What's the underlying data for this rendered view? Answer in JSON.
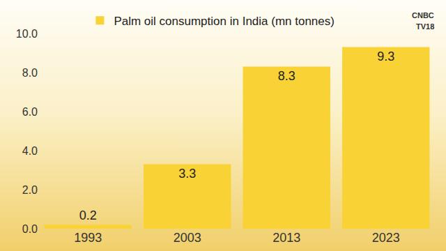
{
  "chart_data": {
    "type": "bar",
    "categories": [
      "1993",
      "2003",
      "2013",
      "2023"
    ],
    "series": [
      {
        "name": "Palm oil consumption in India (mn tonnes)",
        "color": "#f9d236",
        "values": [
          0.2,
          3.3,
          8.3,
          9.3
        ]
      }
    ],
    "ylim": [
      0,
      10
    ],
    "yticks": [
      {
        "value": 0,
        "label": "0.0"
      },
      {
        "value": 2,
        "label": "2.0"
      },
      {
        "value": 4,
        "label": "4.0"
      },
      {
        "value": 6,
        "label": "6.0"
      },
      {
        "value": 8,
        "label": "8.0"
      },
      {
        "value": 10,
        "label": "10.0"
      }
    ],
    "grid": false,
    "legend": "top",
    "data_labels": true,
    "annotations": [
      "CNBC",
      "TV18"
    ]
  }
}
